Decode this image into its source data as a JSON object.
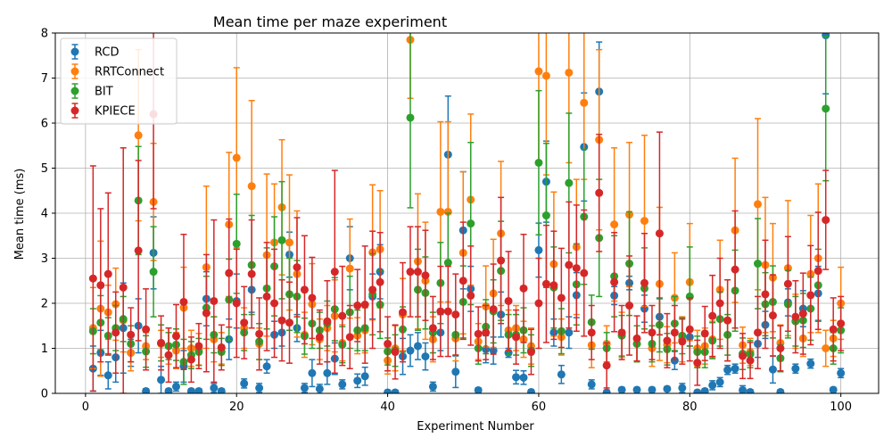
{
  "chart_data": {
    "type": "scatter",
    "title": "Mean time per maze experiment",
    "xlabel": "Experiment Number",
    "ylabel": "Mean time (ms)",
    "xlim": [
      -4,
      105
    ],
    "ylim": [
      0,
      8
    ],
    "xticks": [
      0,
      20,
      40,
      60,
      80,
      100
    ],
    "yticks": [
      0,
      1,
      2,
      3,
      4,
      5,
      6,
      7,
      8
    ],
    "grid": true,
    "legend_position": "top-left",
    "series": [
      {
        "name": "RCD",
        "color": "#1f77b4",
        "x": [
          1,
          2,
          3,
          4,
          5,
          6,
          7,
          8,
          9,
          10,
          11,
          12,
          13,
          14,
          15,
          16,
          17,
          18,
          19,
          20,
          21,
          22,
          23,
          24,
          25,
          26,
          27,
          28,
          29,
          30,
          31,
          32,
          33,
          34,
          35,
          36,
          37,
          38,
          39,
          40,
          41,
          42,
          43,
          44,
          45,
          46,
          47,
          48,
          49,
          50,
          51,
          52,
          53,
          54,
          55,
          56,
          57,
          58,
          59,
          60,
          61,
          62,
          63,
          64,
          65,
          66,
          67,
          68,
          69,
          70,
          71,
          72,
          73,
          74,
          75,
          76,
          77,
          78,
          79,
          80,
          81,
          82,
          83,
          84,
          85,
          86,
          87,
          88,
          89,
          90,
          91,
          92,
          93,
          94,
          95,
          96,
          97,
          98,
          99,
          100
        ],
        "y": [
          0.55,
          0.9,
          0.4,
          0.8,
          1.45,
          0.9,
          1.5,
          0.05,
          3.12,
          0.3,
          0.05,
          0.15,
          0.6,
          0.05,
          0.05,
          2.1,
          0.12,
          0.05,
          1.2,
          2.05,
          0.22,
          2.3,
          0.12,
          0.6,
          1.3,
          1.35,
          3.08,
          1.45,
          0.12,
          0.45,
          0.1,
          0.45,
          0.77,
          0.2,
          3.0,
          0.28,
          0.38,
          2.15,
          2.7,
          0.02,
          0.02,
          0.82,
          0.95,
          1.05,
          0.82,
          0.15,
          1.35,
          5.3,
          0.48,
          3.62,
          2.32,
          0.07,
          0.98,
          0.95,
          1.75,
          0.9,
          0.36,
          0.35,
          0.03,
          3.18,
          4.7,
          1.35,
          0.42,
          1.35,
          2.18,
          5.47,
          0.2,
          6.7,
          0.02,
          2.17,
          0.08,
          2.45,
          0.08,
          1.88,
          0.08,
          1.7,
          0.1,
          0.73,
          0.12,
          1.25,
          0.02,
          0.05,
          0.18,
          0.25,
          0.52,
          0.55,
          0.07,
          0.03,
          1.1,
          1.52,
          0.53,
          0.03,
          2.02,
          0.55,
          1.88,
          0.66,
          2.22,
          7.95,
          0.08,
          0.45
        ],
        "err": [
          0.5,
          0.5,
          0.3,
          0.55,
          1.0,
          0.3,
          0.6,
          0.05,
          0.8,
          0.3,
          0.05,
          0.1,
          0.35,
          0.05,
          0.05,
          0.6,
          0.1,
          0.05,
          0.45,
          0.6,
          0.1,
          0.5,
          0.1,
          0.15,
          0.3,
          0.3,
          0.5,
          0.3,
          0.1,
          0.3,
          0.1,
          0.25,
          0.35,
          0.1,
          0.7,
          0.15,
          0.2,
          0.5,
          0.6,
          0.05,
          0.05,
          0.4,
          0.35,
          0.3,
          0.3,
          0.1,
          0.4,
          1.3,
          0.35,
          1.3,
          0.5,
          0.05,
          0.3,
          0.3,
          0.5,
          0.1,
          0.15,
          0.15,
          0.05,
          0.6,
          0.9,
          0.3,
          0.2,
          0.35,
          0.5,
          1.2,
          0.1,
          1.1,
          0.05,
          0.2,
          0.05,
          0.15,
          0.05,
          0.3,
          0.05,
          0.4,
          0.05,
          0.2,
          0.1,
          0.2,
          0.05,
          0.05,
          0.1,
          0.1,
          0.1,
          0.1,
          0.1,
          0.05,
          0.3,
          0.3,
          0.3,
          0.05,
          0.3,
          0.1,
          0.4,
          0.1,
          0.6,
          1.3,
          0.05,
          0.1
        ]
      },
      {
        "name": "RRTConnect",
        "color": "#ff7f0e",
        "x": [
          1,
          2,
          3,
          4,
          5,
          6,
          7,
          8,
          9,
          10,
          11,
          12,
          13,
          14,
          15,
          16,
          17,
          18,
          19,
          20,
          21,
          22,
          23,
          24,
          25,
          26,
          27,
          28,
          29,
          30,
          31,
          32,
          33,
          34,
          35,
          36,
          37,
          38,
          39,
          40,
          41,
          42,
          43,
          44,
          45,
          46,
          47,
          48,
          49,
          50,
          51,
          52,
          53,
          54,
          55,
          56,
          57,
          58,
          59,
          60,
          61,
          62,
          63,
          64,
          65,
          66,
          67,
          68,
          69,
          70,
          71,
          72,
          73,
          74,
          75,
          76,
          77,
          78,
          79,
          80,
          81,
          82,
          83,
          84,
          85,
          86,
          87,
          88,
          89,
          90,
          91,
          92,
          93,
          94,
          95,
          96,
          97,
          98,
          99,
          100
        ],
        "y": [
          1.45,
          1.88,
          1.8,
          1.98,
          1.62,
          0.9,
          5.73,
          1.05,
          4.25,
          1.1,
          1.05,
          0.95,
          1.9,
          1.0,
          0.98,
          2.8,
          1.2,
          1.0,
          3.75,
          5.23,
          1.45,
          4.6,
          1.1,
          3.07,
          3.35,
          4.13,
          3.35,
          2.65,
          1.3,
          1.98,
          1.2,
          1.45,
          1.72,
          1.12,
          2.77,
          1.28,
          1.4,
          3.13,
          3.2,
          0.73,
          1.0,
          1.75,
          7.85,
          2.93,
          2.5,
          1.2,
          4.03,
          4.03,
          1.22,
          3.12,
          4.3,
          1.15,
          1.93,
          2.22,
          3.55,
          1.4,
          1.45,
          1.2,
          1.05,
          7.15,
          7.05,
          2.87,
          1.25,
          7.12,
          3.25,
          6.45,
          1.07,
          5.63,
          1.1,
          3.75,
          1.3,
          3.97,
          1.1,
          3.83,
          1.0,
          2.43,
          1.08,
          2.12,
          1.2,
          2.47,
          1.0,
          1.05,
          1.2,
          2.3,
          1.62,
          3.62,
          1.07,
          0.92,
          4.2,
          2.85,
          2.57,
          1.12,
          2.78,
          1.6,
          1.22,
          2.65,
          3.0,
          1.0,
          1.22,
          2.0
        ],
        "err": [
          0.9,
          1.5,
          0.6,
          0.8,
          0.7,
          0.4,
          1.9,
          0.3,
          1.3,
          0.3,
          0.4,
          0.4,
          0.9,
          0.4,
          0.35,
          1.8,
          0.5,
          0.35,
          1.6,
          2.0,
          0.45,
          1.9,
          0.35,
          1.8,
          1.3,
          1.5,
          1.5,
          1.4,
          0.5,
          0.9,
          0.45,
          0.5,
          0.8,
          0.4,
          1.1,
          0.4,
          0.5,
          1.5,
          1.3,
          0.3,
          0.5,
          0.8,
          1.3,
          1.5,
          1.3,
          0.5,
          2.0,
          2.0,
          0.5,
          1.8,
          1.9,
          0.4,
          0.9,
          1.2,
          1.6,
          0.45,
          0.5,
          0.4,
          0.4,
          2.0,
          2.2,
          1.6,
          0.4,
          2.0,
          1.5,
          1.7,
          0.5,
          2.0,
          0.4,
          1.7,
          0.5,
          1.6,
          0.4,
          1.9,
          0.4,
          1.7,
          0.4,
          1.0,
          0.5,
          1.3,
          0.4,
          0.4,
          0.4,
          1.1,
          0.9,
          1.6,
          0.4,
          0.3,
          1.9,
          1.5,
          1.2,
          0.4,
          1.5,
          0.6,
          0.4,
          1.3,
          1.65,
          0.4,
          0.4,
          0.8
        ]
      },
      {
        "name": "BIT",
        "color": "#2ca02c",
        "x": [
          1,
          2,
          3,
          4,
          5,
          6,
          7,
          8,
          9,
          10,
          11,
          12,
          13,
          14,
          15,
          16,
          17,
          18,
          19,
          20,
          21,
          22,
          23,
          24,
          25,
          26,
          27,
          28,
          29,
          30,
          31,
          32,
          33,
          34,
          35,
          36,
          37,
          38,
          39,
          40,
          41,
          42,
          43,
          44,
          45,
          46,
          47,
          48,
          49,
          50,
          51,
          52,
          53,
          54,
          55,
          56,
          57,
          58,
          59,
          60,
          61,
          62,
          63,
          64,
          65,
          66,
          67,
          68,
          69,
          70,
          71,
          72,
          73,
          74,
          75,
          76,
          77,
          78,
          79,
          80,
          81,
          82,
          83,
          84,
          85,
          86,
          87,
          88,
          89,
          90,
          91,
          92,
          93,
          94,
          95,
          96,
          97,
          98,
          99,
          100
        ],
        "y": [
          1.38,
          1.57,
          1.28,
          1.45,
          1.65,
          1.1,
          4.28,
          0.93,
          2.7,
          1.12,
          1.05,
          1.08,
          0.7,
          0.85,
          0.92,
          1.9,
          1.3,
          0.92,
          2.08,
          3.32,
          1.35,
          2.85,
          1.15,
          2.33,
          2.82,
          3.4,
          2.2,
          2.15,
          1.27,
          1.55,
          1.4,
          1.55,
          1.87,
          1.08,
          1.8,
          1.4,
          1.45,
          2.2,
          1.97,
          0.93,
          0.95,
          1.42,
          6.12,
          2.3,
          2.23,
          1.35,
          2.45,
          2.9,
          1.3,
          2.03,
          3.77,
          1.0,
          1.48,
          1.82,
          2.72,
          1.3,
          1.3,
          1.4,
          0.95,
          5.12,
          3.95,
          2.35,
          1.38,
          4.67,
          2.42,
          3.92,
          1.58,
          3.45,
          1.0,
          2.6,
          1.28,
          2.88,
          1.1,
          2.33,
          1.1,
          1.52,
          0.98,
          1.55,
          1.28,
          2.15,
          0.92,
          0.92,
          1.17,
          1.65,
          1.3,
          2.28,
          0.88,
          0.87,
          2.88,
          1.98,
          2.03,
          0.78,
          1.98,
          1.6,
          1.62,
          1.88,
          2.4,
          6.32,
          1.0,
          1.4
        ],
        "err": [
          0.5,
          0.6,
          0.4,
          0.5,
          0.5,
          0.4,
          1.2,
          0.35,
          1.0,
          0.4,
          0.3,
          0.35,
          0.5,
          0.3,
          0.3,
          0.7,
          0.4,
          0.3,
          0.9,
          1.1,
          0.4,
          1.1,
          0.4,
          0.9,
          1.1,
          1.3,
          0.8,
          0.8,
          0.4,
          0.55,
          0.4,
          0.5,
          0.7,
          0.4,
          0.8,
          0.45,
          0.5,
          0.9,
          0.75,
          0.3,
          0.35,
          0.5,
          2.0,
          0.9,
          0.8,
          0.45,
          0.9,
          1.1,
          0.45,
          0.8,
          1.8,
          0.35,
          0.6,
          0.7,
          1.1,
          0.45,
          0.45,
          0.5,
          0.35,
          1.6,
          1.6,
          0.9,
          0.5,
          1.55,
          0.9,
          1.5,
          0.6,
          1.3,
          0.35,
          0.9,
          0.45,
          1.15,
          0.4,
          0.9,
          0.4,
          0.6,
          0.35,
          0.6,
          0.4,
          1.1,
          0.35,
          0.35,
          0.4,
          0.6,
          0.45,
          0.9,
          0.35,
          0.3,
          1.0,
          0.7,
          0.8,
          0.3,
          0.75,
          0.55,
          0.6,
          0.7,
          0.8,
          1.6,
          0.35,
          0.5
        ]
      },
      {
        "name": "KPIECE",
        "color": "#d62728",
        "x": [
          1,
          2,
          3,
          4,
          5,
          6,
          7,
          8,
          9,
          10,
          11,
          12,
          13,
          14,
          15,
          16,
          17,
          18,
          19,
          20,
          21,
          22,
          23,
          24,
          25,
          26,
          27,
          28,
          29,
          30,
          31,
          32,
          33,
          34,
          35,
          36,
          37,
          38,
          39,
          40,
          41,
          42,
          43,
          44,
          45,
          46,
          47,
          48,
          49,
          50,
          51,
          52,
          53,
          54,
          55,
          56,
          57,
          58,
          59,
          60,
          61,
          62,
          63,
          64,
          65,
          66,
          67,
          68,
          69,
          70,
          71,
          72,
          73,
          74,
          75,
          76,
          77,
          78,
          79,
          80,
          81,
          82,
          83,
          84,
          85,
          86,
          87,
          88,
          89,
          90,
          91,
          92,
          93,
          94,
          95,
          96,
          97,
          98,
          99,
          100
        ],
        "y": [
          2.55,
          2.4,
          2.65,
          1.35,
          2.35,
          1.3,
          3.17,
          1.42,
          6.2,
          1.12,
          0.85,
          1.27,
          2.03,
          0.75,
          1.05,
          1.78,
          2.05,
          1.02,
          2.67,
          2.0,
          1.57,
          2.65,
          1.32,
          2.15,
          2.0,
          1.62,
          1.57,
          2.8,
          2.3,
          2.12,
          1.25,
          1.6,
          2.7,
          1.72,
          1.25,
          1.95,
          1.97,
          2.3,
          2.47,
          1.1,
          0.92,
          1.8,
          2.7,
          2.7,
          2.62,
          1.45,
          1.82,
          1.82,
          1.75,
          2.5,
          2.17,
          1.32,
          1.35,
          1.87,
          2.95,
          2.05,
          1.25,
          2.33,
          0.92,
          2.0,
          2.43,
          2.4,
          2.12,
          2.85,
          2.78,
          2.67,
          1.35,
          4.45,
          0.62,
          2.47,
          1.35,
          1.95,
          1.22,
          2.45,
          1.35,
          3.55,
          1.17,
          1.35,
          1.15,
          1.42,
          0.68,
          1.33,
          1.72,
          2.0,
          1.62,
          2.75,
          0.83,
          0.73,
          1.35,
          2.2,
          1.73,
          1.0,
          2.43,
          1.7,
          1.77,
          2.18,
          2.72,
          3.85,
          1.42,
          1.55
        ],
        "err": [
          2.5,
          1.7,
          1.8,
          0.9,
          3.1,
          0.6,
          2.0,
          0.9,
          2.1,
          0.6,
          0.6,
          0.7,
          1.5,
          0.5,
          0.5,
          1.3,
          1.8,
          0.5,
          1.2,
          1.2,
          0.8,
          1.2,
          0.8,
          1.2,
          1.2,
          0.9,
          0.9,
          1.1,
          1.2,
          0.9,
          0.6,
          0.9,
          2.25,
          1.1,
          0.7,
          0.8,
          1.3,
          1.3,
          1.1,
          0.6,
          0.6,
          1.1,
          1.0,
          1.0,
          1.0,
          0.7,
          1.0,
          1.0,
          0.9,
          1.3,
          1.1,
          0.6,
          0.6,
          1.0,
          1.4,
          1.1,
          0.6,
          1.2,
          0.5,
          1.0,
          1.3,
          1.2,
          1.1,
          1.4,
          1.4,
          1.4,
          0.6,
          1.3,
          0.5,
          1.1,
          0.6,
          1.1,
          0.5,
          1.1,
          0.6,
          2.25,
          0.6,
          0.6,
          0.5,
          0.7,
          0.5,
          0.6,
          0.9,
          1.0,
          0.9,
          1.3,
          0.5,
          0.4,
          0.8,
          1.2,
          0.9,
          0.5,
          1.05,
          0.8,
          0.9,
          1.1,
          1.3,
          1.1,
          0.7,
          0.6
        ]
      }
    ]
  }
}
